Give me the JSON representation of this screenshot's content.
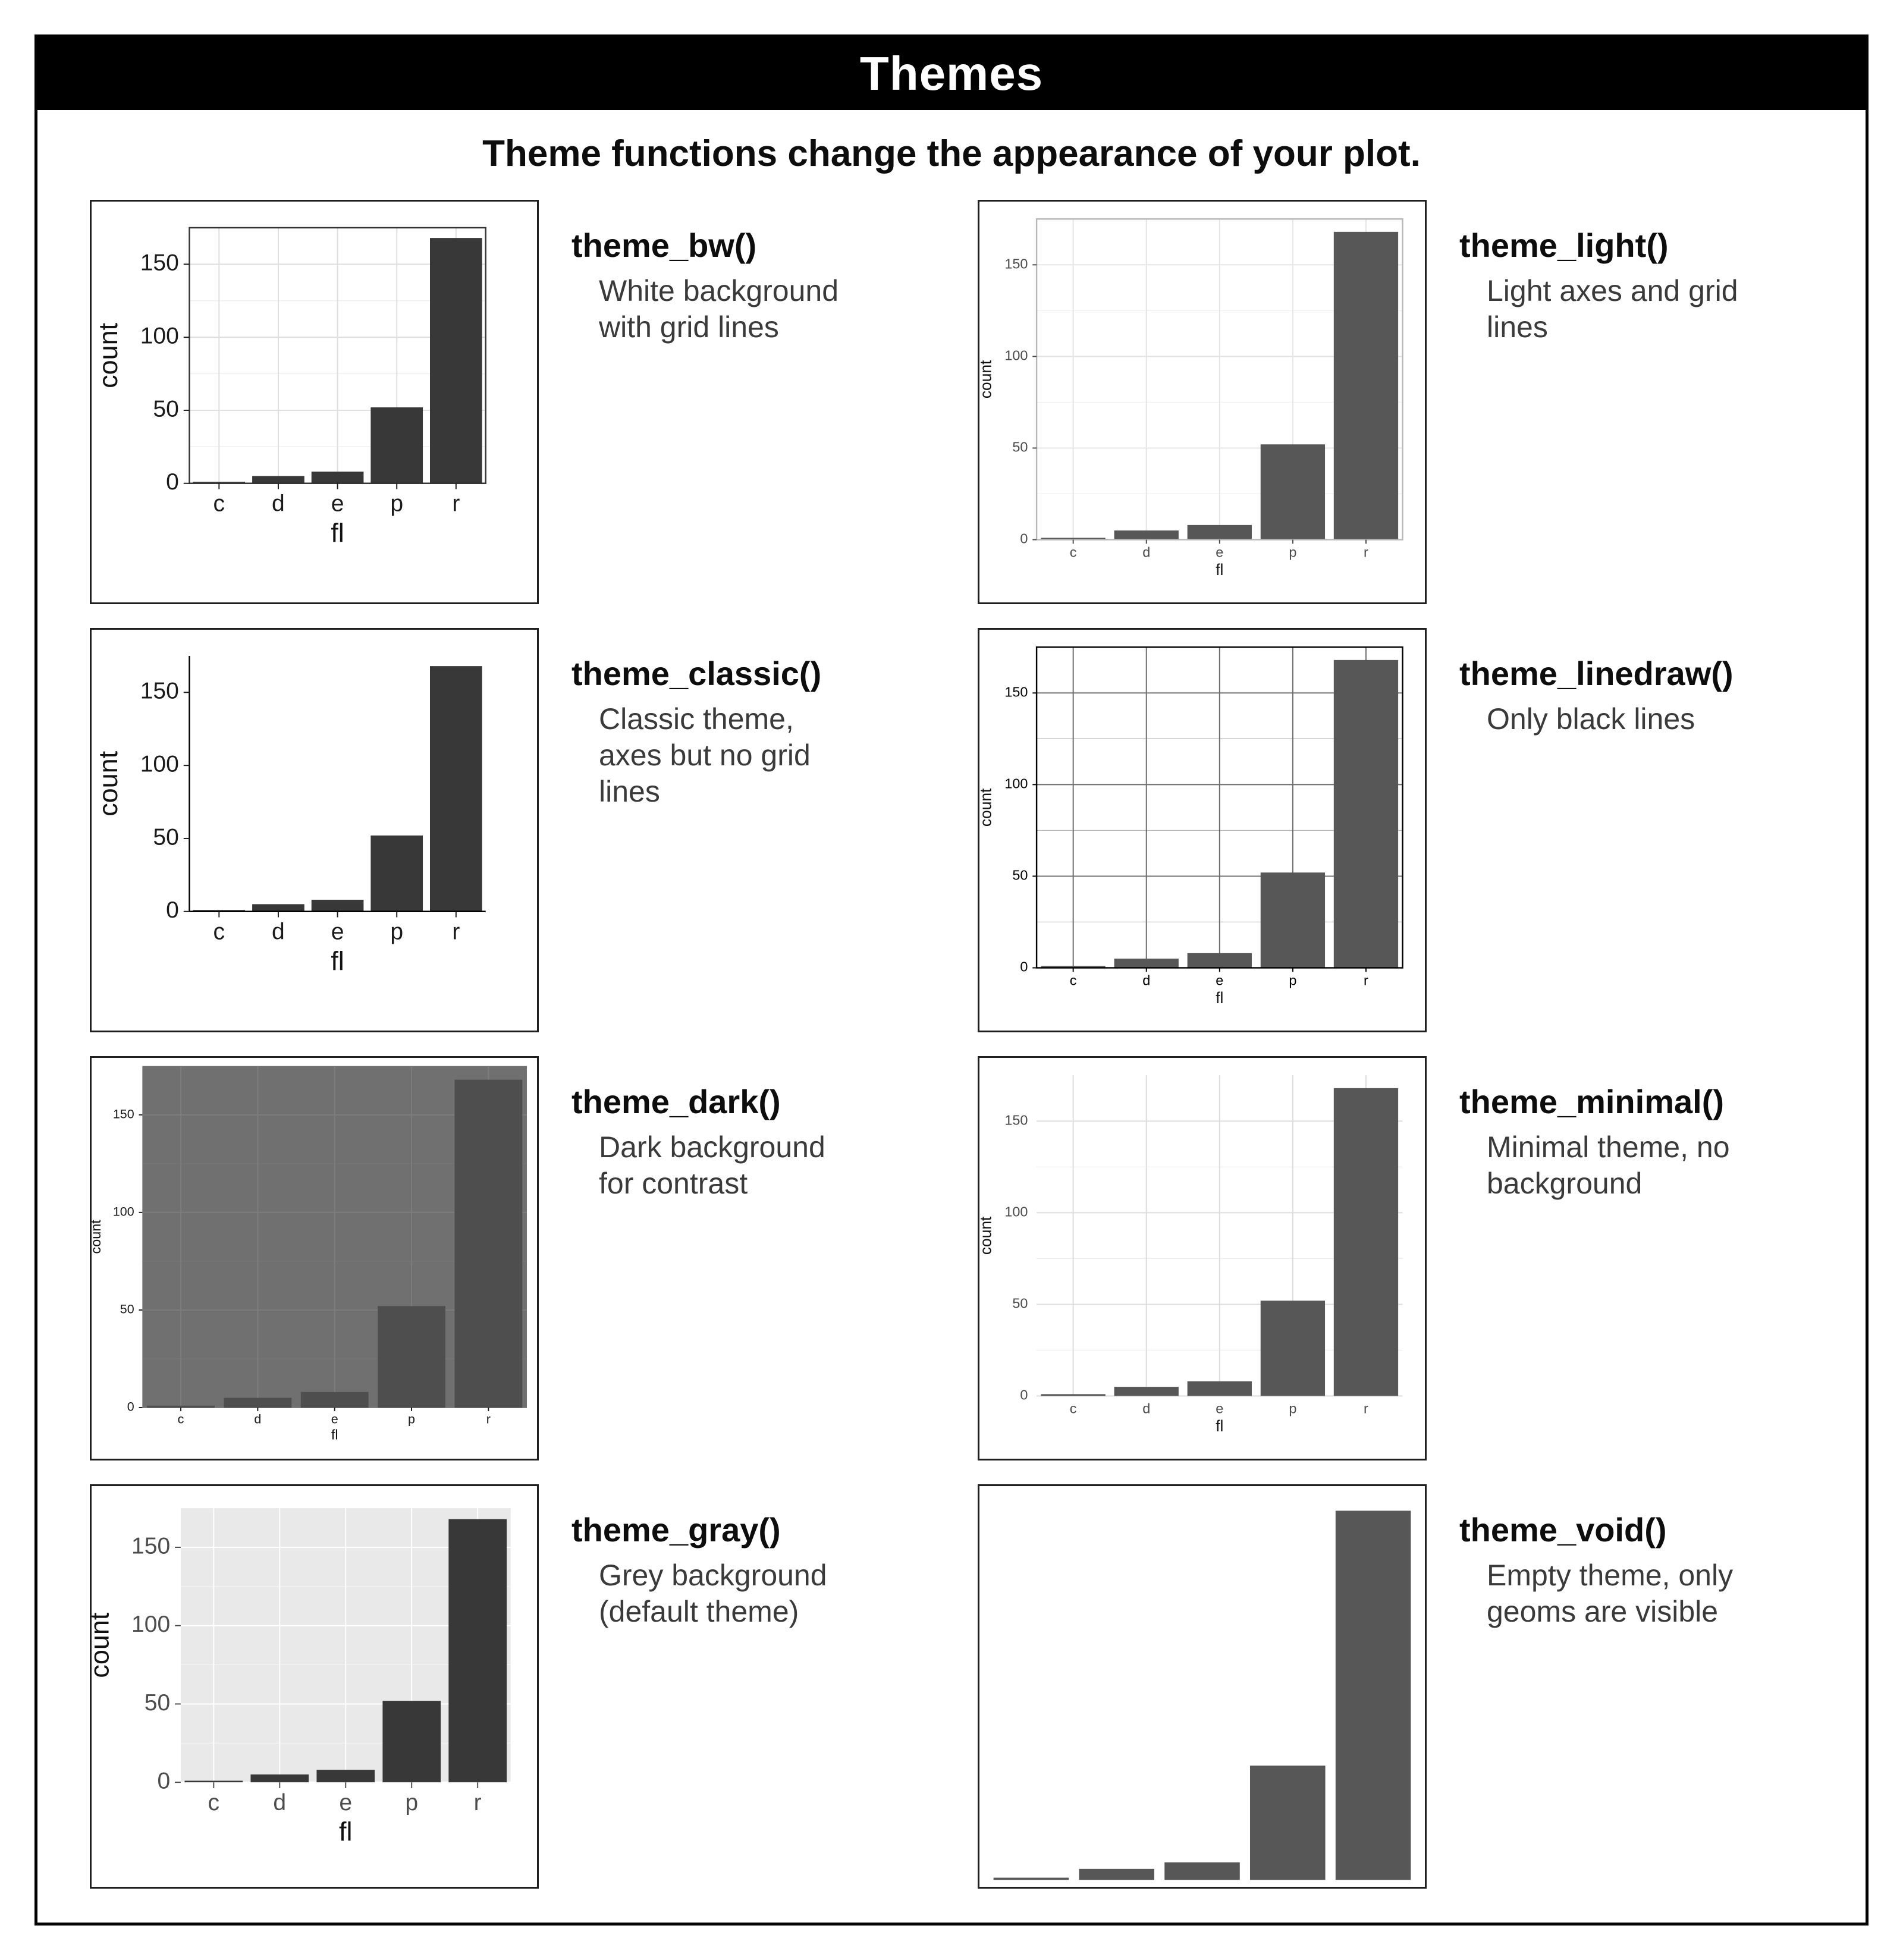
{
  "page": {
    "title": "Themes",
    "subtitle": "Theme functions change the appearance of your plot."
  },
  "chart_data": {
    "type": "bar",
    "categories": [
      "c",
      "d",
      "e",
      "p",
      "r"
    ],
    "values": [
      1,
      5,
      8,
      52,
      168
    ],
    "title": "",
    "xlabel": "fl",
    "ylabel": "count",
    "yticks": [
      0,
      50,
      100,
      150
    ],
    "ylim": [
      0,
      175
    ],
    "legend": "none"
  },
  "themes": [
    {
      "name": "theme_bw()",
      "description": "White background\nwith grid lines",
      "style": {
        "preset": "large",
        "panel_bg": "#ffffff",
        "border": "#333333",
        "grid": "#dedede",
        "minor": "#ececec",
        "axis_line": null,
        "ticks": true,
        "text": "#1a1a1a",
        "bar": "#383838"
      }
    },
    {
      "name": "theme_light()",
      "description": "Light axes and grid\nlines",
      "style": {
        "preset": "small",
        "panel_bg": "#ffffff",
        "border": "#b8b8b8",
        "grid": "#e4e4e4",
        "minor": "#f0f0f0",
        "axis_line": null,
        "ticks": true,
        "text": "#4a4a4a",
        "bar": "#575757"
      }
    },
    {
      "name": "theme_classic()",
      "description": "Classic theme,\naxes but no grid\nlines",
      "style": {
        "preset": "large",
        "panel_bg": "#ffffff",
        "border": null,
        "grid": null,
        "minor": null,
        "axis_line": "#000000",
        "ticks": true,
        "text": "#1a1a1a",
        "bar": "#383838"
      }
    },
    {
      "name": "theme_linedraw()",
      "description": "Only black lines",
      "style": {
        "preset": "small",
        "panel_bg": "#ffffff",
        "border": "#000000",
        "grid": "#6b6b6b",
        "minor": "#b3b3b3",
        "axis_line": null,
        "ticks": true,
        "text": "#000000",
        "bar": "#575757"
      }
    },
    {
      "name": "theme_dark()",
      "description": "Dark background\nfor contrast",
      "style": {
        "preset": "dark",
        "panel_bg": "#707070",
        "border": null,
        "grid": "#7d7d7d",
        "minor": "#777777",
        "axis_line": null,
        "ticks": true,
        "text": "#1a1a1a",
        "bar": "#4e4e4e"
      }
    },
    {
      "name": "theme_minimal()",
      "description": "Minimal theme, no\nbackground",
      "style": {
        "preset": "small",
        "panel_bg": null,
        "border": null,
        "grid": "#dcdcdc",
        "minor": "#ececec",
        "axis_line": null,
        "ticks": false,
        "text": "#4a4a4a",
        "bar": "#575757"
      }
    },
    {
      "name": "theme_gray()",
      "description": "Grey background\n(default theme)",
      "style": {
        "preset": "gray",
        "panel_bg": "#e9e9e9",
        "border": null,
        "grid": "#ffffff",
        "minor": "#f5f5f5",
        "axis_line": null,
        "ticks": true,
        "text": "#4d4d4d",
        "bar": "#383838"
      }
    },
    {
      "name": "theme_void()",
      "description": "Empty theme, only\ngeoms are visible",
      "style": {
        "preset": "void",
        "panel_bg": null,
        "border": null,
        "grid": null,
        "minor": null,
        "axis_line": null,
        "ticks": false,
        "text": null,
        "bar": "#575757"
      }
    }
  ]
}
